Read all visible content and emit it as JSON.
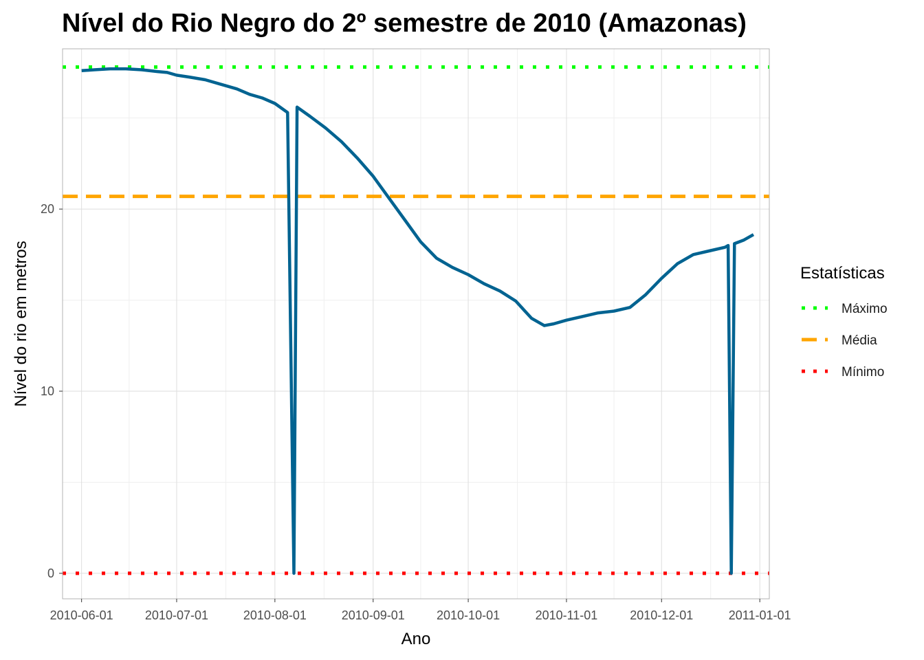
{
  "chart_data": {
    "type": "line",
    "title": "Nível do Rio Negro do 2º semestre de 2010 (Amazonas)",
    "xlabel": "Ano",
    "ylabel": "Nível do rio em metros",
    "xlim": [
      "2010-05-26",
      "2011-01-04"
    ],
    "ylim": [
      -1.4,
      28.8
    ],
    "x_ticks": [
      "2010-06-01",
      "2010-07-01",
      "2010-08-01",
      "2010-09-01",
      "2010-10-01",
      "2010-11-01",
      "2010-12-01",
      "2011-01-01"
    ],
    "y_ticks": [
      0,
      10,
      20
    ],
    "grid": true,
    "legend": {
      "title": "Estatísticas",
      "position": "right",
      "items": [
        {
          "label": "Máximo",
          "color": "#00ff00",
          "linetype": "dotted"
        },
        {
          "label": "Média",
          "color": "#ffa500",
          "linetype": "dashed"
        },
        {
          "label": "Mínimo",
          "color": "#ff0000",
          "linetype": "dotted"
        }
      ]
    },
    "reference_lines": [
      {
        "name": "Máximo",
        "value": 27.8,
        "color": "#00ff00",
        "linetype": "dotted"
      },
      {
        "name": "Média",
        "value": 20.7,
        "color": "#ffa500",
        "linetype": "dashed"
      },
      {
        "name": "Mínimo",
        "value": 0,
        "color": "#ff0000",
        "linetype": "dotted"
      }
    ],
    "series": [
      {
        "color": "#006391",
        "points": [
          [
            "2010-06-01",
            27.6
          ],
          [
            "2010-06-05",
            27.65
          ],
          [
            "2010-06-10",
            27.7
          ],
          [
            "2010-06-15",
            27.7
          ],
          [
            "2010-06-20",
            27.65
          ],
          [
            "2010-06-25",
            27.55
          ],
          [
            "2010-06-28",
            27.5
          ],
          [
            "2010-07-01",
            27.35
          ],
          [
            "2010-07-05",
            27.25
          ],
          [
            "2010-07-10",
            27.1
          ],
          [
            "2010-07-15",
            26.85
          ],
          [
            "2010-07-20",
            26.6
          ],
          [
            "2010-07-24",
            26.3
          ],
          [
            "2010-07-28",
            26.1
          ],
          [
            "2010-08-01",
            25.8
          ],
          [
            "2010-08-05",
            25.3
          ],
          [
            "2010-08-07",
            0
          ],
          [
            "2010-08-08",
            25.6
          ],
          [
            "2010-08-12",
            25.1
          ],
          [
            "2010-08-17",
            24.45
          ],
          [
            "2010-08-22",
            23.7
          ],
          [
            "2010-08-27",
            22.8
          ],
          [
            "2010-09-01",
            21.8
          ],
          [
            "2010-09-06",
            20.6
          ],
          [
            "2010-09-11",
            19.4
          ],
          [
            "2010-09-16",
            18.2
          ],
          [
            "2010-09-21",
            17.3
          ],
          [
            "2010-09-26",
            16.8
          ],
          [
            "2010-10-01",
            16.4
          ],
          [
            "2010-10-06",
            15.9
          ],
          [
            "2010-10-11",
            15.5
          ],
          [
            "2010-10-16",
            14.95
          ],
          [
            "2010-10-21",
            14.0
          ],
          [
            "2010-10-25",
            13.6
          ],
          [
            "2010-10-28",
            13.7
          ],
          [
            "2010-11-01",
            13.9
          ],
          [
            "2010-11-06",
            14.1
          ],
          [
            "2010-11-11",
            14.3
          ],
          [
            "2010-11-16",
            14.4
          ],
          [
            "2010-11-21",
            14.6
          ],
          [
            "2010-11-26",
            15.3
          ],
          [
            "2010-12-01",
            16.2
          ],
          [
            "2010-12-06",
            17.0
          ],
          [
            "2010-12-11",
            17.5
          ],
          [
            "2010-12-16",
            17.7
          ],
          [
            "2010-12-21",
            17.9
          ],
          [
            "2010-12-22",
            18.0
          ],
          [
            "2010-12-23",
            0
          ],
          [
            "2010-12-24",
            18.1
          ],
          [
            "2010-12-27",
            18.3
          ],
          [
            "2010-12-30",
            18.6
          ]
        ]
      }
    ]
  }
}
